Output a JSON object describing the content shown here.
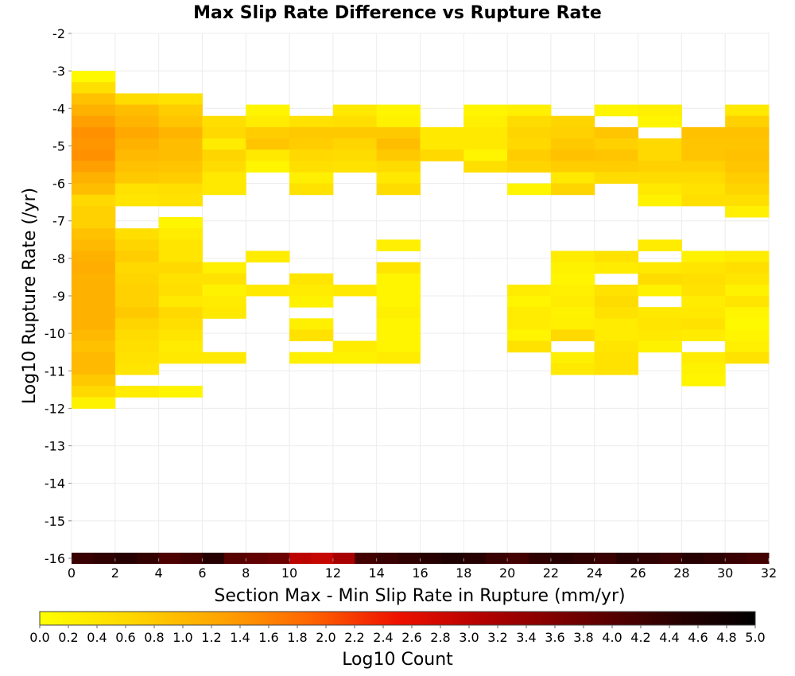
{
  "chart_data": {
    "type": "heatmap",
    "title": "Max Slip Rate Difference vs Rupture Rate",
    "xlabel": "Section Max - Min Slip Rate in Rupture (mm/yr)",
    "ylabel": "Log10 Rupture Rate (/yr)",
    "xlim": [
      0,
      32
    ],
    "ylim": [
      -16,
      -2
    ],
    "x_ticks": [
      "0",
      "2",
      "4",
      "6",
      "8",
      "10",
      "12",
      "14",
      "16",
      "18",
      "20",
      "22",
      "24",
      "26",
      "28",
      "30",
      "32"
    ],
    "y_ticks": [
      "-2",
      "-3",
      "-4",
      "-5",
      "-6",
      "-7",
      "-8",
      "-9",
      "-10",
      "-11",
      "-12",
      "-13",
      "-14",
      "-15",
      "-16"
    ],
    "x_bin_width": 2,
    "y_bin_height": 0.3,
    "colorbar": {
      "label": "Log10 Count",
      "range": [
        0,
        5
      ],
      "ticks": [
        "0.0",
        "0.2",
        "0.4",
        "0.6",
        "0.8",
        "1.0",
        "1.2",
        "1.4",
        "1.6",
        "1.8",
        "2.0",
        "2.2",
        "2.4",
        "2.6",
        "2.8",
        "3.0",
        "3.2",
        "3.4",
        "3.6",
        "3.8",
        "4.0",
        "4.2",
        "4.4",
        "4.6",
        "4.8",
        "5.0"
      ],
      "colormap": [
        "#ffff00",
        "#ffd700",
        "#ffa500",
        "#ff6600",
        "#ee1100",
        "#b00000",
        "#700000",
        "#300000",
        "#000000"
      ]
    },
    "columns": [
      {
        "x0": 0,
        "cells": [
          [
            -3.0,
            0.1
          ],
          [
            -3.3,
            0.5
          ],
          [
            -3.6,
            0.9
          ],
          [
            -3.9,
            1.1
          ],
          [
            -4.2,
            1.3
          ],
          [
            -4.5,
            1.45
          ],
          [
            -4.8,
            1.4
          ],
          [
            -5.1,
            1.45
          ],
          [
            -5.4,
            1.3
          ],
          [
            -5.7,
            1.1
          ],
          [
            -6.0,
            0.95
          ],
          [
            -6.3,
            0.6
          ],
          [
            -6.6,
            0.7
          ],
          [
            -6.9,
            0.7
          ],
          [
            -7.2,
            0.9
          ],
          [
            -7.5,
            1.0
          ],
          [
            -7.8,
            1.1
          ],
          [
            -8.1,
            1.15
          ],
          [
            -8.4,
            1.1
          ],
          [
            -8.7,
            1.1
          ],
          [
            -9.0,
            1.1
          ],
          [
            -9.3,
            1.1
          ],
          [
            -9.6,
            1.1
          ],
          [
            -9.9,
            1.0
          ],
          [
            -10.2,
            0.9
          ],
          [
            -10.5,
            1.0
          ],
          [
            -10.8,
            1.0
          ],
          [
            -11.1,
            0.8
          ],
          [
            -11.4,
            0.6
          ],
          [
            -11.7,
            0.2
          ]
        ]
      },
      {
        "x0": 2,
        "cells": [
          [
            -3.6,
            0.55
          ],
          [
            -3.9,
            0.95
          ],
          [
            -4.2,
            1.05
          ],
          [
            -4.5,
            1.2
          ],
          [
            -4.8,
            1.1
          ],
          [
            -5.1,
            1.0
          ],
          [
            -5.4,
            0.9
          ],
          [
            -5.7,
            0.8
          ],
          [
            -6.0,
            0.45
          ],
          [
            -6.3,
            0.4
          ],
          [
            -7.2,
            0.5
          ],
          [
            -7.5,
            0.65
          ],
          [
            -7.8,
            0.75
          ],
          [
            -8.1,
            0.6
          ],
          [
            -8.4,
            0.65
          ],
          [
            -8.7,
            0.7
          ],
          [
            -9.0,
            0.7
          ],
          [
            -9.3,
            0.8
          ],
          [
            -9.6,
            0.65
          ],
          [
            -9.9,
            0.55
          ],
          [
            -10.2,
            0.5
          ],
          [
            -10.5,
            0.45
          ],
          [
            -10.8,
            0.4
          ],
          [
            -11.4,
            0.3
          ]
        ]
      },
      {
        "x0": 4,
        "cells": [
          [
            -3.6,
            0.45
          ],
          [
            -3.9,
            0.75
          ],
          [
            -4.2,
            0.85
          ],
          [
            -4.5,
            1.05
          ],
          [
            -4.8,
            0.95
          ],
          [
            -5.1,
            0.95
          ],
          [
            -5.4,
            0.85
          ],
          [
            -5.7,
            0.75
          ],
          [
            -6.0,
            0.5
          ],
          [
            -6.3,
            0.45
          ],
          [
            -6.9,
            0.15
          ],
          [
            -7.2,
            0.3
          ],
          [
            -7.5,
            0.4
          ],
          [
            -7.8,
            0.4
          ],
          [
            -8.1,
            0.6
          ],
          [
            -8.4,
            0.45
          ],
          [
            -8.7,
            0.5
          ],
          [
            -9.0,
            0.35
          ],
          [
            -9.3,
            0.6
          ],
          [
            -9.6,
            0.5
          ],
          [
            -9.9,
            0.4
          ],
          [
            -10.2,
            0.3
          ],
          [
            -10.5,
            0.35
          ],
          [
            -11.4,
            0.15
          ]
        ]
      },
      {
        "x0": 6,
        "cells": [
          [
            -4.2,
            0.5
          ],
          [
            -4.5,
            0.6
          ],
          [
            -4.8,
            0.3
          ],
          [
            -5.1,
            0.65
          ],
          [
            -5.4,
            0.55
          ],
          [
            -5.7,
            0.35
          ],
          [
            -6.0,
            0.35
          ],
          [
            -8.1,
            0.25
          ],
          [
            -8.4,
            0.45
          ],
          [
            -8.7,
            0.2
          ],
          [
            -9.0,
            0.3
          ],
          [
            -9.3,
            0.35
          ],
          [
            -10.5,
            0.35
          ]
        ]
      },
      {
        "x0": 8,
        "cells": [
          [
            -3.9,
            0.15
          ],
          [
            -4.2,
            0.3
          ],
          [
            -4.5,
            0.75
          ],
          [
            -4.8,
            0.85
          ],
          [
            -5.1,
            0.35
          ],
          [
            -5.4,
            0.15
          ],
          [
            -7.8,
            0.3
          ],
          [
            -8.7,
            0.35
          ]
        ]
      },
      {
        "x0": 10,
        "cells": [
          [
            -4.2,
            0.45
          ],
          [
            -4.5,
            0.8
          ],
          [
            -4.8,
            0.75
          ],
          [
            -5.1,
            0.6
          ],
          [
            -5.4,
            0.5
          ],
          [
            -5.7,
            0.25
          ],
          [
            -6.0,
            0.45
          ],
          [
            -8.4,
            0.4
          ],
          [
            -8.7,
            0.3
          ],
          [
            -9.0,
            0.2
          ],
          [
            -9.6,
            0.25
          ],
          [
            -9.9,
            0.45
          ],
          [
            -10.5,
            0.25
          ]
        ]
      },
      {
        "x0": 12,
        "cells": [
          [
            -3.9,
            0.35
          ],
          [
            -4.2,
            0.5
          ],
          [
            -4.5,
            0.8
          ],
          [
            -4.8,
            0.65
          ],
          [
            -5.1,
            0.55
          ],
          [
            -5.4,
            0.45
          ],
          [
            -8.7,
            0.35
          ],
          [
            -10.2,
            0.3
          ],
          [
            -10.5,
            0.2
          ]
        ]
      },
      {
        "x0": 14,
        "cells": [
          [
            -3.9,
            0.15
          ],
          [
            -4.2,
            0.2
          ],
          [
            -4.5,
            0.8
          ],
          [
            -4.8,
            0.95
          ],
          [
            -5.1,
            0.8
          ],
          [
            -5.4,
            0.55
          ],
          [
            -5.7,
            0.35
          ],
          [
            -6.0,
            0.55
          ],
          [
            -7.5,
            0.25
          ],
          [
            -8.1,
            0.4
          ],
          [
            -8.4,
            0.15
          ],
          [
            -8.7,
            0.15
          ],
          [
            -9.0,
            0.15
          ],
          [
            -9.3,
            0.25
          ],
          [
            -9.6,
            0.15
          ],
          [
            -9.9,
            0.15
          ],
          [
            -10.2,
            0.15
          ],
          [
            -10.5,
            0.3
          ]
        ]
      },
      {
        "x0": 16,
        "cells": [
          [
            -4.5,
            0.35
          ],
          [
            -4.8,
            0.35
          ],
          [
            -5.1,
            0.6
          ]
        ]
      },
      {
        "x0": 18,
        "cells": [
          [
            -3.9,
            0.15
          ],
          [
            -4.2,
            0.25
          ],
          [
            -4.5,
            0.35
          ],
          [
            -4.8,
            0.35
          ],
          [
            -5.1,
            0.15
          ],
          [
            -5.4,
            0.5
          ]
        ]
      },
      {
        "x0": 20,
        "cells": [
          [
            -3.9,
            0.25
          ],
          [
            -4.2,
            0.55
          ],
          [
            -4.5,
            0.65
          ],
          [
            -4.8,
            0.6
          ],
          [
            -5.1,
            0.75
          ],
          [
            -5.4,
            0.65
          ],
          [
            -6.0,
            0.15
          ],
          [
            -8.7,
            0.3
          ],
          [
            -9.0,
            0.15
          ],
          [
            -9.3,
            0.3
          ],
          [
            -9.6,
            0.3
          ],
          [
            -9.9,
            0.15
          ],
          [
            -10.2,
            0.45
          ]
        ]
      },
      {
        "x0": 22,
        "cells": [
          [
            -4.2,
            0.65
          ],
          [
            -4.5,
            0.7
          ],
          [
            -4.8,
            0.8
          ],
          [
            -5.1,
            0.9
          ],
          [
            -5.4,
            0.75
          ],
          [
            -5.7,
            0.35
          ],
          [
            -6.0,
            0.65
          ],
          [
            -7.8,
            0.3
          ],
          [
            -8.1,
            0.2
          ],
          [
            -8.4,
            0.15
          ],
          [
            -8.7,
            0.25
          ],
          [
            -9.0,
            0.3
          ],
          [
            -9.3,
            0.2
          ],
          [
            -9.6,
            0.25
          ],
          [
            -9.9,
            0.6
          ],
          [
            -10.5,
            0.25
          ],
          [
            -10.8,
            0.35
          ]
        ]
      },
      {
        "x0": 24,
        "cells": [
          [
            -3.9,
            0.15
          ],
          [
            -4.5,
            0.85
          ],
          [
            -4.8,
            0.7
          ],
          [
            -5.1,
            0.85
          ],
          [
            -5.4,
            0.75
          ],
          [
            -5.7,
            0.55
          ],
          [
            -7.8,
            0.45
          ],
          [
            -8.1,
            0.3
          ],
          [
            -8.7,
            0.45
          ],
          [
            -9.0,
            0.55
          ],
          [
            -9.3,
            0.45
          ],
          [
            -9.6,
            0.3
          ],
          [
            -9.9,
            0.3
          ],
          [
            -10.2,
            0.4
          ],
          [
            -10.5,
            0.45
          ],
          [
            -10.8,
            0.45
          ]
        ]
      },
      {
        "x0": 26,
        "cells": [
          [
            -3.9,
            0.25
          ],
          [
            -4.2,
            0.15
          ],
          [
            -4.8,
            0.6
          ],
          [
            -5.1,
            0.6
          ],
          [
            -5.4,
            0.7
          ],
          [
            -5.7,
            0.55
          ],
          [
            -6.0,
            0.35
          ],
          [
            -6.3,
            0.2
          ],
          [
            -7.5,
            0.3
          ],
          [
            -8.1,
            0.35
          ],
          [
            -8.4,
            0.55
          ],
          [
            -8.7,
            0.2
          ],
          [
            -9.3,
            0.35
          ],
          [
            -9.6,
            0.4
          ],
          [
            -9.9,
            0.35
          ],
          [
            -10.2,
            0.2
          ]
        ]
      },
      {
        "x0": 28,
        "cells": [
          [
            -4.5,
            0.9
          ],
          [
            -4.8,
            0.85
          ],
          [
            -5.1,
            0.85
          ],
          [
            -5.4,
            0.7
          ],
          [
            -5.7,
            0.55
          ],
          [
            -6.0,
            0.45
          ],
          [
            -6.3,
            0.5
          ],
          [
            -7.8,
            0.2
          ],
          [
            -8.1,
            0.4
          ],
          [
            -8.4,
            0.5
          ],
          [
            -8.7,
            0.45
          ],
          [
            -9.0,
            0.3
          ],
          [
            -9.3,
            0.35
          ],
          [
            -9.6,
            0.45
          ],
          [
            -9.9,
            0.3
          ],
          [
            -10.5,
            0.3
          ],
          [
            -10.8,
            0.2
          ],
          [
            -11.1,
            0.15
          ]
        ]
      },
      {
        "x0": 30,
        "cells": [
          [
            -3.9,
            0.35
          ],
          [
            -4.2,
            0.7
          ],
          [
            -4.5,
            0.9
          ],
          [
            -4.8,
            0.85
          ],
          [
            -5.1,
            0.9
          ],
          [
            -5.4,
            0.85
          ],
          [
            -5.7,
            0.75
          ],
          [
            -6.0,
            0.65
          ],
          [
            -6.3,
            0.5
          ],
          [
            -6.6,
            0.25
          ],
          [
            -7.8,
            0.3
          ],
          [
            -8.1,
            0.5
          ],
          [
            -8.4,
            0.4
          ],
          [
            -8.7,
            0.2
          ],
          [
            -9.0,
            0.4
          ],
          [
            -9.3,
            0.15
          ],
          [
            -9.6,
            0.1
          ],
          [
            -9.9,
            0.15
          ],
          [
            -10.2,
            0.25
          ],
          [
            -10.5,
            0.45
          ]
        ]
      }
    ],
    "bottom_row": {
      "y0": -16.0,
      "height": 0.15,
      "values": [
        4.3,
        4.4,
        4.5,
        4.35,
        4.1,
        4.2,
        4.5,
        4.0,
        3.9,
        3.8,
        3.0,
        2.9,
        3.2,
        4.2,
        4.3,
        4.4,
        4.5,
        4.6,
        4.5,
        4.3,
        4.2,
        4.4,
        4.5,
        4.4,
        4.3,
        4.5,
        4.4,
        4.3,
        4.5,
        4.4,
        4.3,
        4.2
      ]
    }
  }
}
